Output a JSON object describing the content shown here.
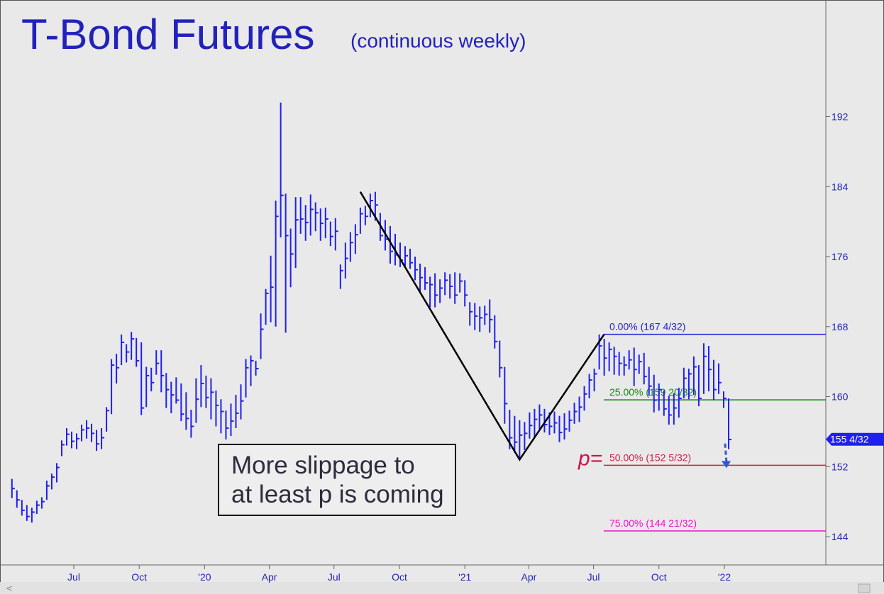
{
  "header": {
    "title": "T-Bond Futures",
    "subtitle": "(continuous weekly)"
  },
  "annotation": {
    "line1": "More slippage to",
    "line2": "at least p is coming"
  },
  "colors": {
    "price_bars": "#2020ee",
    "axis_text": "#2222bb",
    "fib_0": "#2020dd",
    "fib_25": "#118811",
    "fib_50": "#cc2244",
    "fib_75": "#ee11cc",
    "zigzag": "#000000",
    "price_tag": "#2020ee"
  },
  "chart_data": {
    "type": "ohlc",
    "title": "T-Bond Futures",
    "subtitle": "(continuous weekly)",
    "y_axis": {
      "position": "right",
      "ticks": [
        144,
        152,
        160,
        168,
        176,
        184,
        192
      ]
    },
    "x_axis": {
      "ticks": [
        "Jul",
        "Oct",
        "'20",
        "Apr",
        "Jul",
        "Oct",
        "'21",
        "Apr",
        "Jul",
        "Oct",
        "'22"
      ]
    },
    "ylim": [
      137.5,
      197
    ],
    "last_price_label": "155 4/32",
    "last_price": 155.125,
    "p_marker": "p=",
    "fib_levels": [
      {
        "label": "0.00% (167 4/32)",
        "value": 167.125
      },
      {
        "label": "25.00% (159 20/32)",
        "value": 159.625
      },
      {
        "label": "50.00% (152 5/32)",
        "value": 152.156
      },
      {
        "label": "75.00% (144 21/32)",
        "value": 144.656
      }
    ],
    "zigzag": [
      {
        "date": "2020-08-07",
        "value": 183.4
      },
      {
        "date": "2021-03-19",
        "value": 152.8
      },
      {
        "date": "2021-07-16",
        "value": 167.125
      }
    ],
    "projection_arrow": {
      "date": "2021-12-31",
      "from": 155.125,
      "to": 152.156
    },
    "first_week": "2019-04-05",
    "weeks": [
      [
        150.6,
        148.4,
        149.5
      ],
      [
        149.3,
        147.3,
        148.2
      ],
      [
        148.2,
        146.4,
        147.0
      ],
      [
        147.6,
        145.8,
        146.3
      ],
      [
        147.3,
        145.6,
        146.8
      ],
      [
        148.1,
        146.6,
        147.6
      ],
      [
        148.5,
        147.2,
        148.0
      ],
      [
        150.4,
        148.2,
        149.8
      ],
      [
        151.2,
        149.4,
        150.8
      ],
      [
        152.4,
        150.2,
        151.9
      ],
      [
        155.0,
        153.2,
        154.5
      ],
      [
        156.4,
        154.4,
        155.7
      ],
      [
        156.0,
        154.1,
        154.9
      ],
      [
        155.8,
        154.0,
        155.2
      ],
      [
        156.8,
        154.9,
        156.2
      ],
      [
        157.3,
        155.2,
        156.4
      ],
      [
        156.9,
        154.8,
        155.8
      ],
      [
        156.2,
        153.8,
        154.6
      ],
      [
        156.4,
        154.0,
        155.3
      ],
      [
        158.8,
        156.0,
        158.4
      ],
      [
        164.3,
        158.0,
        163.6
      ],
      [
        164.9,
        161.5,
        163.3
      ],
      [
        167.1,
        163.6,
        166.2
      ],
      [
        166.0,
        163.9,
        165.1
      ],
      [
        167.4,
        164.2,
        166.6
      ],
      [
        166.7,
        163.4,
        164.1
      ],
      [
        166.2,
        157.9,
        158.7
      ],
      [
        163.4,
        158.8,
        162.4
      ],
      [
        163.3,
        160.6,
        161.6
      ],
      [
        165.3,
        162.5,
        163.8
      ],
      [
        165.3,
        160.5,
        162.4
      ],
      [
        162.7,
        158.7,
        160.8
      ],
      [
        161.7,
        158.1,
        160.2
      ],
      [
        162.2,
        159.2,
        159.6
      ],
      [
        161.5,
        157.2,
        158.0
      ],
      [
        160.5,
        156.2,
        157.5
      ],
      [
        158.5,
        155.3,
        156.6
      ],
      [
        162.1,
        157.0,
        159.7
      ],
      [
        163.6,
        158.8,
        161.5
      ],
      [
        162.4,
        158.7,
        159.9
      ],
      [
        162.1,
        157.4,
        160.5
      ],
      [
        160.7,
        156.6,
        159.0
      ],
      [
        159.7,
        155.8,
        158.3
      ],
      [
        158.4,
        155.1,
        156.4
      ],
      [
        159.2,
        155.5,
        157.2
      ],
      [
        160.2,
        156.4,
        158.1
      ],
      [
        161.4,
        157.4,
        159.5
      ],
      [
        164.3,
        159.9,
        163.3
      ],
      [
        164.7,
        161.2,
        164.1
      ],
      [
        164.1,
        162.4,
        163.2
      ],
      [
        169.5,
        164.3,
        167.7
      ],
      [
        172.3,
        168.2,
        171.8
      ],
      [
        176.1,
        168.5,
        172.5
      ],
      [
        182.4,
        168.0,
        180.6
      ],
      [
        193.6,
        178.2,
        183.0
      ],
      [
        183.2,
        167.3,
        178.4
      ],
      [
        179.2,
        172.5,
        176.3
      ],
      [
        182.8,
        174.7,
        180.2
      ],
      [
        182.8,
        178.6,
        180.3
      ],
      [
        181.9,
        177.8,
        179.9
      ],
      [
        183.1,
        178.4,
        181.4
      ],
      [
        182.2,
        178.9,
        181.0
      ],
      [
        181.5,
        177.8,
        179.8
      ],
      [
        181.6,
        178.1,
        180.3
      ],
      [
        180.0,
        177.2,
        178.3
      ],
      [
        180.4,
        176.7,
        178.9
      ],
      [
        175.1,
        172.3,
        174.4
      ],
      [
        177.6,
        173.5,
        175.8
      ],
      [
        178.8,
        175.4,
        177.6
      ],
      [
        179.7,
        176.3,
        178.5
      ],
      [
        181.6,
        178.6,
        180.9
      ],
      [
        181.8,
        179.6,
        180.6
      ],
      [
        183.2,
        180.5,
        182.4
      ],
      [
        183.4,
        180.1,
        181.9
      ],
      [
        181.0,
        177.8,
        178.4
      ],
      [
        180.2,
        176.7,
        178.0
      ],
      [
        179.5,
        175.2,
        176.6
      ],
      [
        178.6,
        175.0,
        176.2
      ],
      [
        177.6,
        174.8,
        175.6
      ],
      [
        177.2,
        174.9,
        176.1
      ],
      [
        176.9,
        174.6,
        175.3
      ],
      [
        176.0,
        173.3,
        174.5
      ],
      [
        175.2,
        172.0,
        173.6
      ],
      [
        174.8,
        172.2,
        173.0
      ],
      [
        173.7,
        170.2,
        172.8
      ],
      [
        174.1,
        170.2,
        171.6
      ],
      [
        173.4,
        170.7,
        172.4
      ],
      [
        174.2,
        171.6,
        173.3
      ],
      [
        174.0,
        171.2,
        172.6
      ],
      [
        174.2,
        170.6,
        171.6
      ],
      [
        174.1,
        171.9,
        173.2
      ],
      [
        173.3,
        170.3,
        171.6
      ],
      [
        170.8,
        168.1,
        169.7
      ],
      [
        170.7,
        167.6,
        169.2
      ],
      [
        170.3,
        167.4,
        169.0
      ],
      [
        170.4,
        168.2,
        169.4
      ],
      [
        171.1,
        167.3,
        168.8
      ],
      [
        169.3,
        165.5,
        166.3
      ],
      [
        166.4,
        162.2,
        163.3
      ],
      [
        163.4,
        156.9,
        159.2
      ],
      [
        158.5,
        154.0,
        155.3
      ],
      [
        157.8,
        153.6,
        154.8
      ],
      [
        157.3,
        152.8,
        155.6
      ],
      [
        157.1,
        153.9,
        155.8
      ],
      [
        158.2,
        155.2,
        156.7
      ],
      [
        158.6,
        155.4,
        157.4
      ],
      [
        159.1,
        156.3,
        157.9
      ],
      [
        158.6,
        155.9,
        156.8
      ],
      [
        158.2,
        155.6,
        156.6
      ],
      [
        158.3,
        155.8,
        157.0
      ],
      [
        157.8,
        154.8,
        155.9
      ],
      [
        158.1,
        155.1,
        156.3
      ],
      [
        158.4,
        156.0,
        157.3
      ],
      [
        159.3,
        156.9,
        158.3
      ],
      [
        160.0,
        157.1,
        158.8
      ],
      [
        161.2,
        158.4,
        160.3
      ],
      [
        162.6,
        159.8,
        161.9
      ],
      [
        163.2,
        160.6,
        162.6
      ],
      [
        167.1,
        163.1,
        165.8
      ],
      [
        166.6,
        162.4,
        164.4
      ],
      [
        166.2,
        162.9,
        165.4
      ],
      [
        165.7,
        162.5,
        164.6
      ],
      [
        165.1,
        162.4,
        163.8
      ],
      [
        164.6,
        162.4,
        163.6
      ],
      [
        165.3,
        163.1,
        164.2
      ],
      [
        165.6,
        161.2,
        163.1
      ],
      [
        164.8,
        162.6,
        164.0
      ],
      [
        165.0,
        161.4,
        162.3
      ],
      [
        163.4,
        160.1,
        161.2
      ],
      [
        162.5,
        158.2,
        159.6
      ],
      [
        161.5,
        158.4,
        160.8
      ],
      [
        160.7,
        157.8,
        158.6
      ],
      [
        160.1,
        156.8,
        157.9
      ],
      [
        160.4,
        156.8,
        158.7
      ],
      [
        161.0,
        157.6,
        159.8
      ],
      [
        163.3,
        159.8,
        162.1
      ],
      [
        163.2,
        159.7,
        162.6
      ],
      [
        164.6,
        160.2,
        163.4
      ],
      [
        163.6,
        158.9,
        159.8
      ],
      [
        166.1,
        160.3,
        164.6
      ],
      [
        165.8,
        160.6,
        163.1
      ],
      [
        164.2,
        159.6,
        160.8
      ],
      [
        163.8,
        160.3,
        161.6
      ],
      [
        160.6,
        158.7,
        159.8
      ],
      [
        159.8,
        154.0,
        155.1
      ]
    ]
  }
}
